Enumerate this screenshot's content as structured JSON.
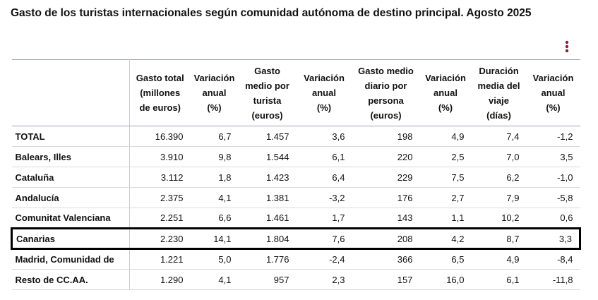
{
  "title": "Gasto de los turistas internacionales según comunidad autónoma de destino principal. Agosto 2025",
  "table": {
    "header": [
      [
        "Gasto total",
        "(millones",
        "de euros)"
      ],
      [
        "Variación",
        "anual",
        "(%)"
      ],
      [
        "Gasto",
        "medio por",
        "turista",
        "(euros)"
      ],
      [
        "Variación",
        "anual",
        "(%)"
      ],
      [
        "Gasto medio",
        "diario por",
        "persona",
        "(euros)"
      ],
      [
        "Variación",
        "anual",
        "(%)"
      ],
      [
        "Duración",
        "media del",
        "viaje",
        "(días)"
      ],
      [
        "Variación",
        "anual",
        "(%)"
      ]
    ],
    "rows": [
      [
        "TOTAL",
        "16.390",
        "6,7",
        "1.457",
        "3,6",
        "198",
        "4,9",
        "7,4",
        "-1,2"
      ],
      [
        "Balears, Illes",
        "3.910",
        "9,8",
        "1.544",
        "6,1",
        "220",
        "2,5",
        "7,0",
        "3,5"
      ],
      [
        "Cataluña",
        "3.112",
        "1,8",
        "1.423",
        "6,4",
        "229",
        "7,5",
        "6,2",
        "-1,0"
      ],
      [
        "Andalucía",
        "2.375",
        "4,1",
        "1.381",
        "-3,2",
        "176",
        "2,7",
        "7,9",
        "-5,8"
      ],
      [
        "Comunitat Valenciana",
        "2.251",
        "6,6",
        "1.461",
        "1,7",
        "143",
        "1,1",
        "10,2",
        "0,6"
      ],
      [
        "Canarias",
        "2.230",
        "14,1",
        "1.804",
        "7,6",
        "208",
        "4,2",
        "8,7",
        "3,3"
      ],
      [
        "Madrid, Comunidad de",
        "1.221",
        "5,0",
        "1.776",
        "-2,4",
        "366",
        "6,5",
        "4,9",
        "-8,4"
      ],
      [
        "Resto de CC.AA.",
        "1.290",
        "4,1",
        "957",
        "2,3",
        "157",
        "16,0",
        "6,1",
        "-11,8"
      ]
    ]
  }
}
